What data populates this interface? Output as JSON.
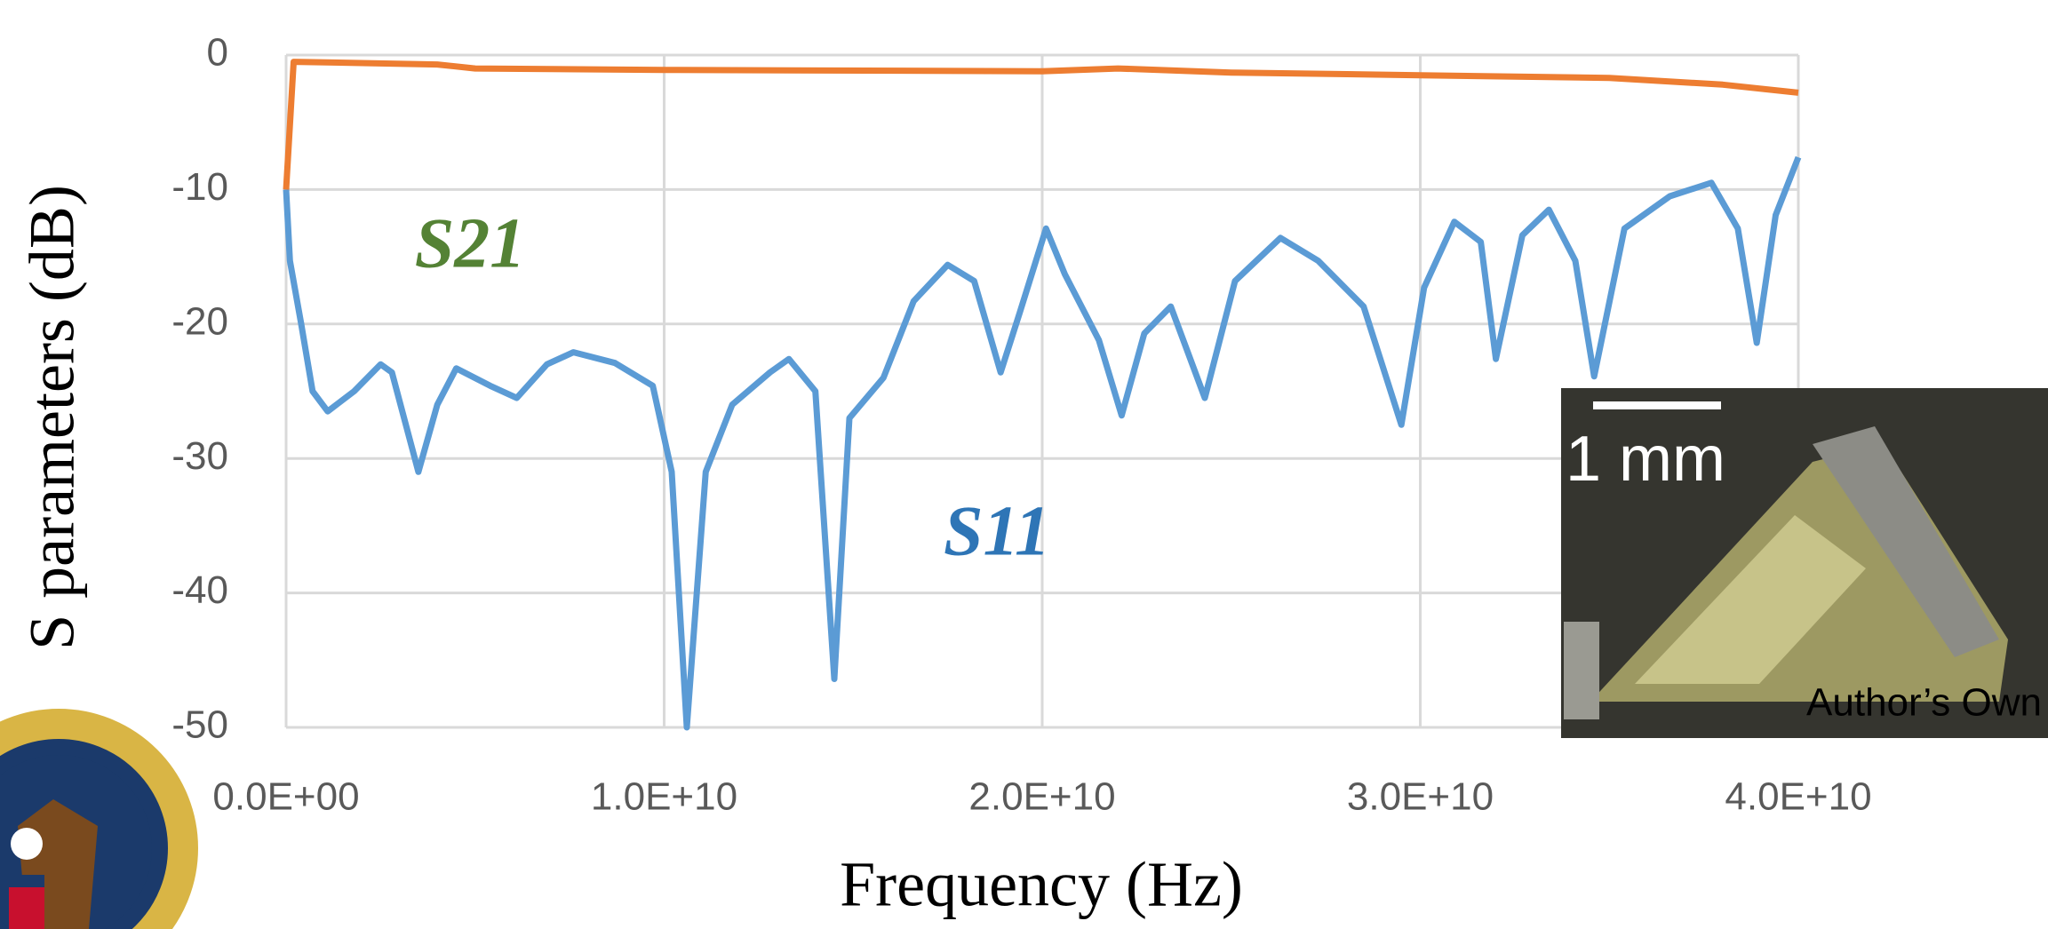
{
  "chart_data": {
    "type": "line",
    "x_label": "Frequency (Hz)",
    "y_label": "S parameters (dB)",
    "xlim": [
      0,
      40000000000
    ],
    "ylim": [
      -50,
      0
    ],
    "xticks": [
      {
        "value": 0,
        "label": "0.0E+00"
      },
      {
        "value": 10000000000,
        "label": "1.0E+10"
      },
      {
        "value": 20000000000,
        "label": "2.0E+10"
      },
      {
        "value": 30000000000,
        "label": "3.0E+10"
      },
      {
        "value": 40000000000,
        "label": "4.0E+10"
      }
    ],
    "yticks": [
      0,
      -10,
      -20,
      -30,
      -40,
      -50
    ],
    "grid": true,
    "series": [
      {
        "name": "S11",
        "color": "#5b9bd5",
        "x": [
          0,
          100000000.0,
          400000000.0,
          700000000.0,
          1100000000.0,
          1800000000.0,
          2500000000.0,
          2800000000.0,
          3500000000.0,
          4000000000.0,
          4500000000.0,
          5400000000.0,
          6100000000.0,
          6900000000.0,
          7600000000.0,
          8700000000.0,
          9700000000.0,
          10200000000.0,
          10600000000.0,
          11100000000.0,
          11800000000.0,
          12800000000.0,
          13300000000.0,
          14000000000.0,
          14500000000.0,
          14900000000.0,
          15800000000.0,
          16600000000.0,
          17500000000.0,
          18200000000.0,
          18900000000.0,
          19400000000.0,
          20100000000.0,
          20600000000.0,
          21500000000.0,
          22100000000.0,
          22700000000.0,
          23400000000.0,
          24300000000.0,
          25100000000.0,
          26300000000.0,
          27300000000.0,
          28500000000.0,
          29500000000.0,
          30100000000.0,
          30900000000.0,
          31600000000.0,
          32000000000.0,
          32700000000.0,
          33400000000.0,
          34100000000.0,
          34600000000.0,
          35400000000.0,
          36600000000.0,
          37700000000.0,
          38400000000.0,
          38900000000.0,
          39400000000.0,
          40000000000.0
        ],
        "values": [
          -10,
          -15.3,
          -20,
          -25,
          -26.5,
          -25,
          -23,
          -23.6,
          -31,
          -26,
          -23.3,
          -24.6,
          -25.5,
          -23,
          -22.1,
          -22.9,
          -24.6,
          -31,
          -50,
          -31,
          -26,
          -23.6,
          -22.6,
          -25,
          -46.4,
          -27,
          -24,
          -18.3,
          -15.6,
          -16.8,
          -23.6,
          -19.2,
          -12.9,
          -16.3,
          -21.2,
          -26.8,
          -20.7,
          -18.7,
          -25.5,
          -16.8,
          -13.6,
          -15.3,
          -18.7,
          -27.5,
          -17.3,
          -12.4,
          -13.9,
          -22.6,
          -13.4,
          -11.5,
          -15.3,
          -23.9,
          -12.9,
          -10.5,
          -9.5,
          -12.9,
          -21.4,
          -11.9,
          -7.6
        ]
      },
      {
        "name": "S21",
        "color": "#ed7d31",
        "x": [
          0,
          200000000.0,
          4000000000.0,
          5000000000.0,
          10000000000.0,
          20000000000.0,
          22000000000.0,
          25000000000.0,
          30000000000.0,
          35000000000.0,
          38000000000.0,
          40000000000.0
        ],
        "values": [
          -10,
          -0.5,
          -0.7,
          -1,
          -1.1,
          -1.2,
          -1,
          -1.3,
          -1.5,
          -1.7,
          -2.2,
          -2.8
        ]
      }
    ],
    "annotations": [
      {
        "text": "S21",
        "color": "#548235"
      },
      {
        "text": "S11",
        "color": "#2e75b6"
      }
    ],
    "inset": {
      "scale_label": "1 mm",
      "credit": "Author’s Own"
    }
  }
}
